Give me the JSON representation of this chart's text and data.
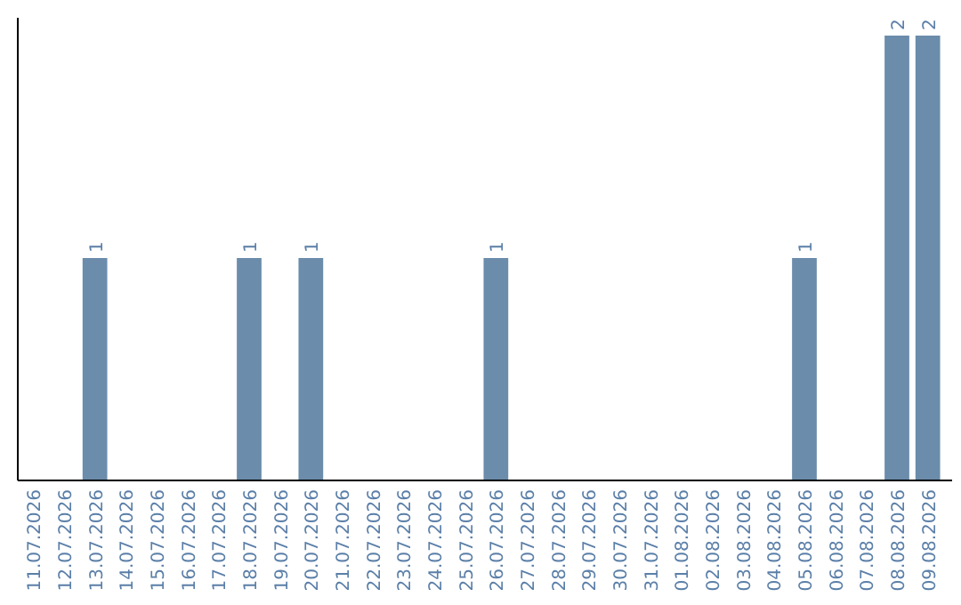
{
  "chart_data": {
    "type": "bar",
    "categories": [
      "11.07.2026",
      "12.07.2026",
      "13.07.2026",
      "14.07.2026",
      "15.07.2026",
      "16.07.2026",
      "17.07.2026",
      "18.07.2026",
      "19.07.2026",
      "20.07.2026",
      "21.07.2026",
      "22.07.2026",
      "23.07.2026",
      "24.07.2026",
      "25.07.2026",
      "26.07.2026",
      "27.07.2026",
      "28.07.2026",
      "29.07.2026",
      "30.07.2026",
      "31.07.2026",
      "01.08.2026",
      "02.08.2026",
      "03.08.2026",
      "04.08.2026",
      "05.08.2026",
      "06.08.2026",
      "07.08.2026",
      "08.08.2026",
      "09.08.2026"
    ],
    "values": [
      0,
      0,
      1,
      0,
      0,
      0,
      0,
      1,
      0,
      1,
      0,
      0,
      0,
      0,
      0,
      1,
      0,
      0,
      0,
      0,
      0,
      0,
      0,
      0,
      0,
      1,
      0,
      0,
      2,
      2
    ],
    "value_labels": [
      null,
      null,
      "1",
      null,
      null,
      null,
      null,
      "1",
      null,
      "1",
      null,
      null,
      null,
      null,
      null,
      "1",
      null,
      null,
      null,
      null,
      null,
      null,
      null,
      null,
      null,
      "1",
      null,
      null,
      "2",
      "2"
    ],
    "color": "#6b8cab",
    "ylim": [
      0,
      2
    ],
    "tick_labels": "x"
  }
}
